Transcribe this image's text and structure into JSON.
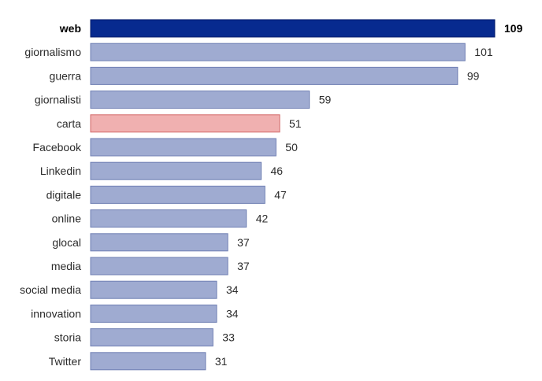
{
  "colors": {
    "highlight": "#072a8f",
    "default": "#9fabd1",
    "default_stroke": "#6f7fb3",
    "accent": "#f0b0b0",
    "accent_stroke": "#d26a6a",
    "highlight_stroke": "#001a6a"
  },
  "chart_data": {
    "type": "bar",
    "orientation": "horizontal",
    "categories": [
      "web",
      "giornalismo",
      "guerra",
      "giornalisti",
      "carta",
      "Facebook",
      "Linkedin",
      "digitale",
      "online",
      "glocal",
      "media",
      "social media",
      "innovation",
      "storia",
      "Twitter"
    ],
    "values": [
      109,
      101,
      99,
      59,
      51,
      50,
      46,
      47,
      42,
      37,
      37,
      34,
      34,
      33,
      31
    ],
    "bar_styles": [
      "highlight",
      "default",
      "default",
      "default",
      "accent",
      "default",
      "default",
      "default",
      "default",
      "default",
      "default",
      "default",
      "default",
      "default",
      "default"
    ],
    "bold": [
      true,
      false,
      false,
      false,
      false,
      false,
      false,
      false,
      false,
      false,
      false,
      false,
      false,
      false,
      false
    ],
    "title": "",
    "xlabel": "",
    "ylabel": "",
    "xlim": [
      0,
      109
    ],
    "grid": false,
    "legend": "none"
  }
}
